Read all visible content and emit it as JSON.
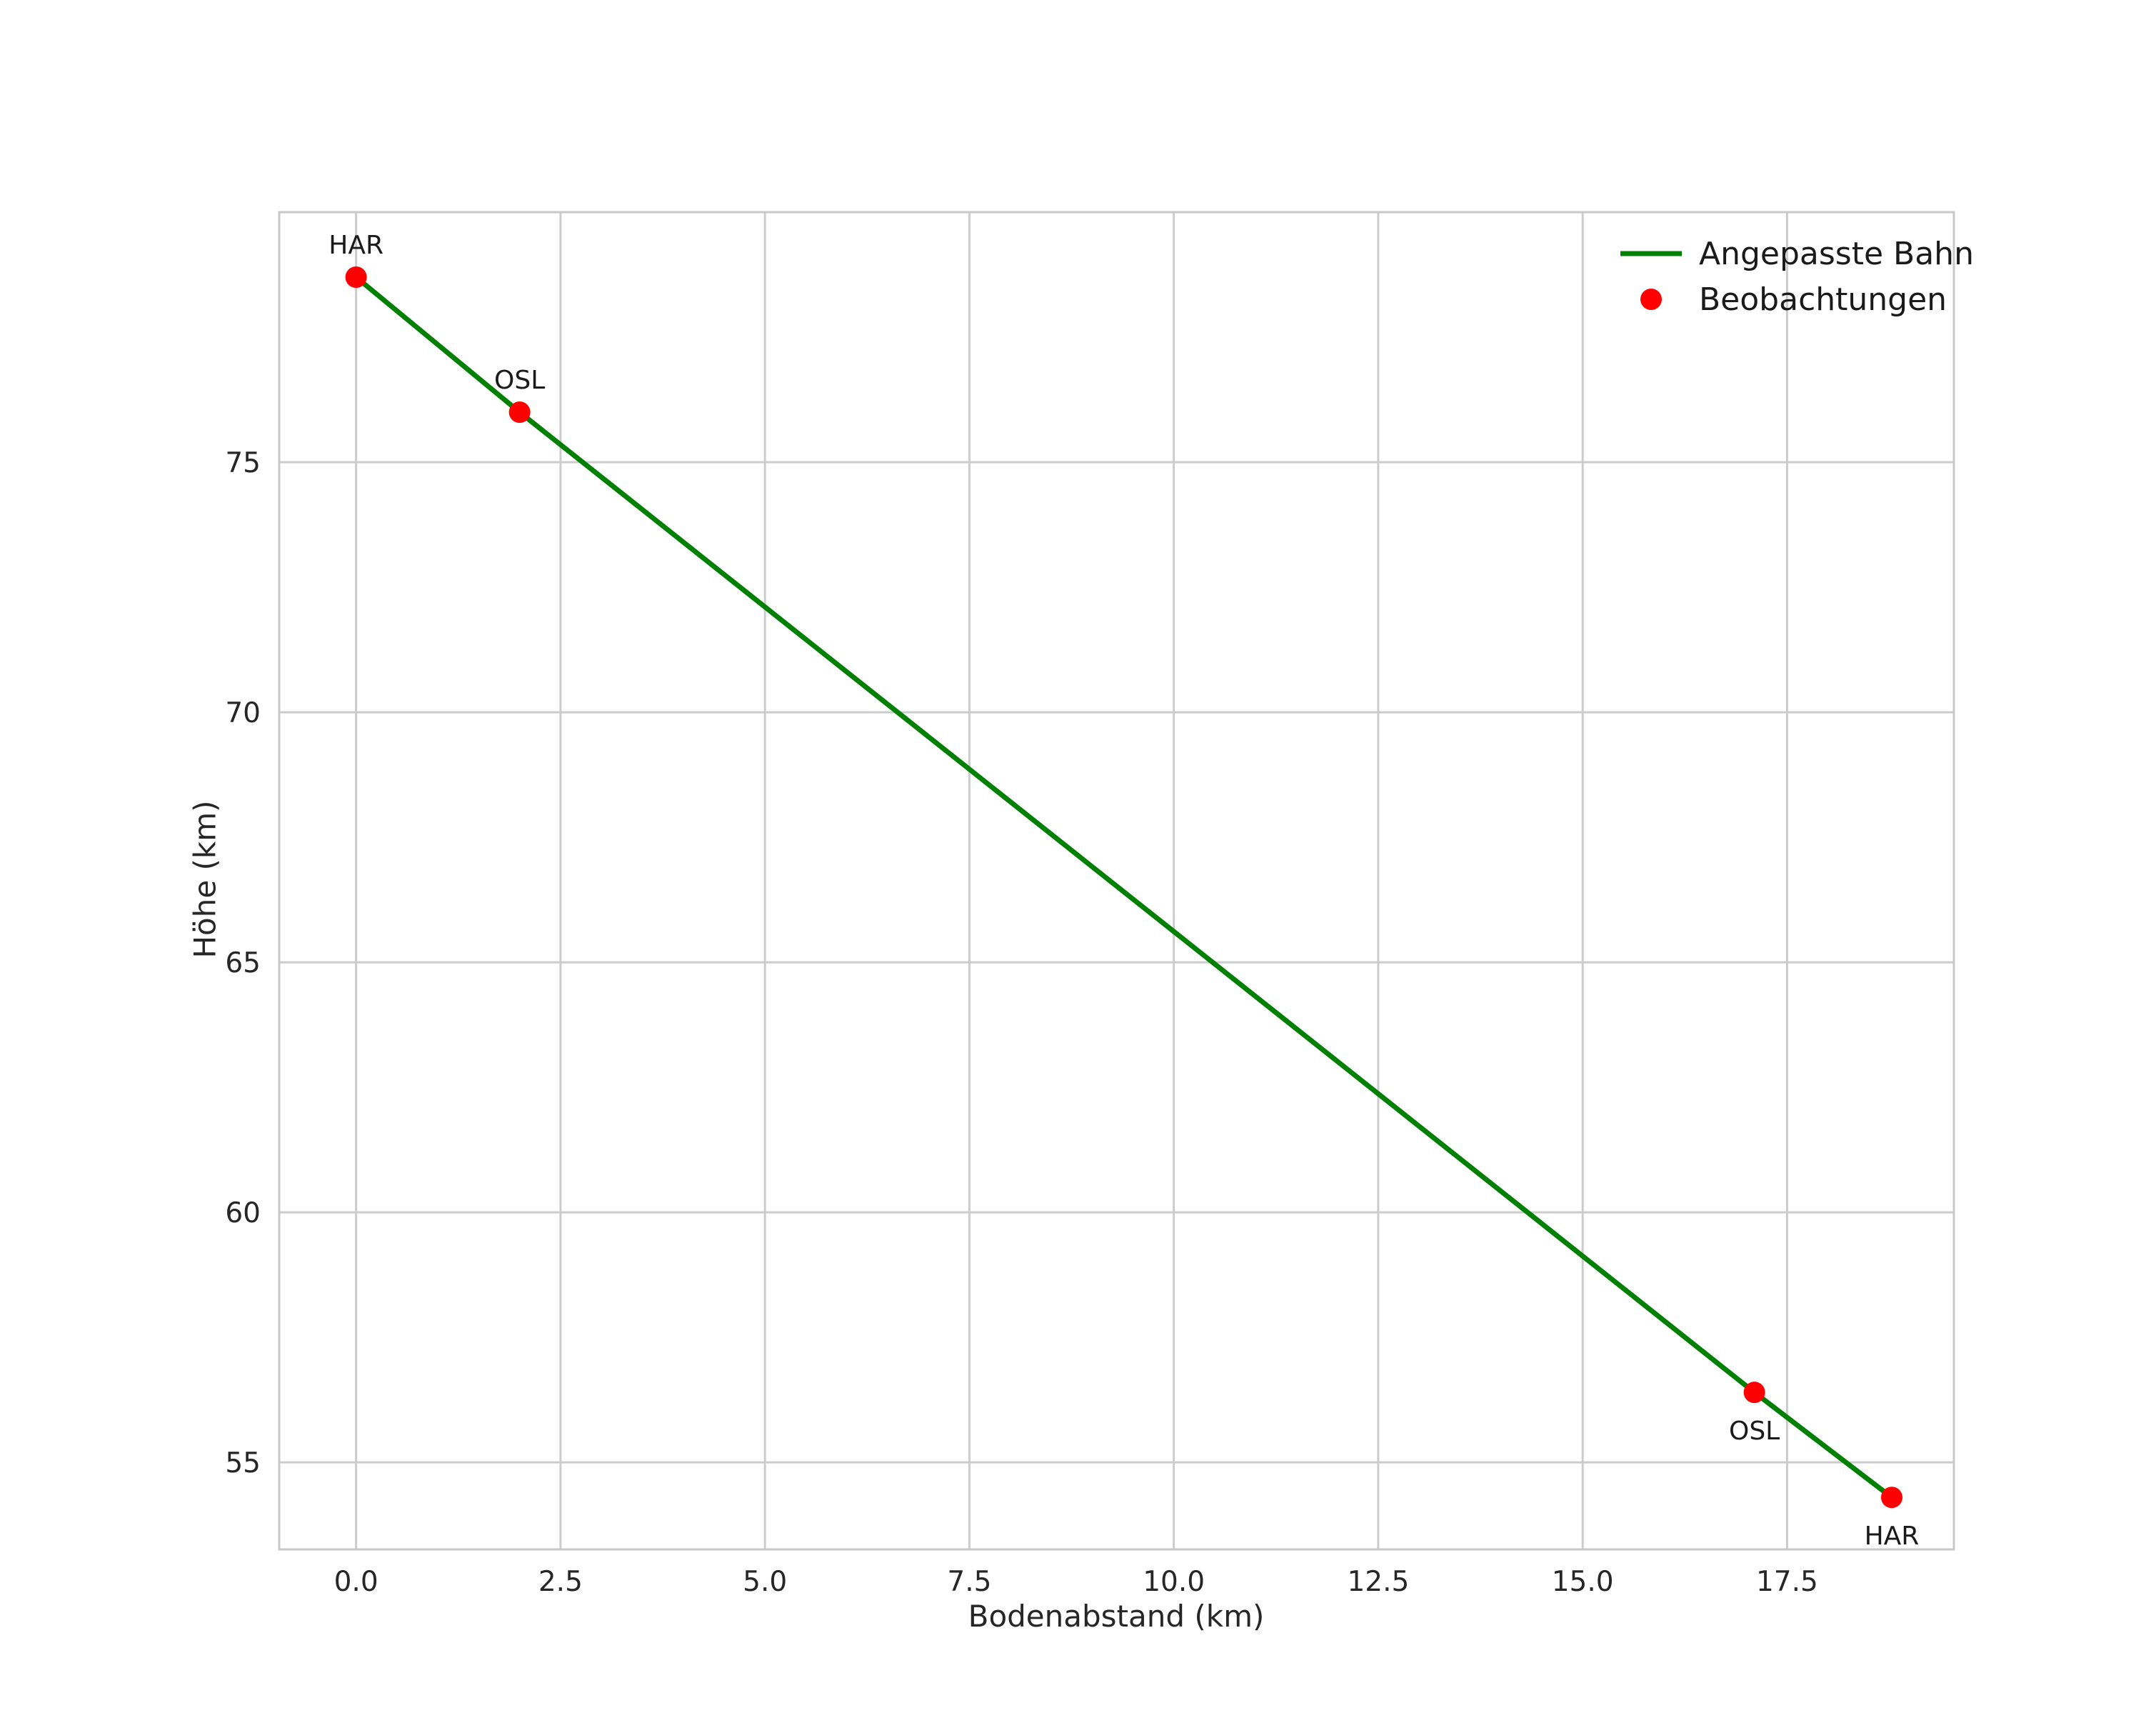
{
  "figure": {
    "background_color": "#ffffff",
    "grid_color": "#cccccc",
    "spine_color": "#c8c8c8",
    "text_color": "#262626"
  },
  "chart_data": {
    "type": "line+scatter",
    "title": "",
    "xlabel": "Bodenabstand (km)",
    "ylabel": "Höhe (km)",
    "grid": true,
    "legend_position": "upper-right",
    "xlim": [
      -0.94,
      19.54
    ],
    "ylim": [
      53.26,
      80.0
    ],
    "x_ticks": {
      "values": [
        0.0,
        2.5,
        5.0,
        7.5,
        10.0,
        12.5,
        15.0,
        17.5
      ],
      "labels": [
        "0.0",
        "2.5",
        "5.0",
        "7.5",
        "10.0",
        "12.5",
        "15.0",
        "17.5"
      ]
    },
    "y_ticks": {
      "values": [
        55,
        60,
        65,
        70,
        75
      ],
      "labels": [
        "55",
        "60",
        "65",
        "70",
        "75"
      ]
    },
    "series": [
      {
        "name": "Angepasste Bahn",
        "type": "line",
        "color": "#008000",
        "x": [
          0.0,
          2.0,
          17.1,
          18.78
        ],
        "y": [
          78.7,
          76.0,
          56.4,
          54.3
        ]
      },
      {
        "name": "Beobachtungen",
        "type": "scatter",
        "color": "#ff0000",
        "points": [
          {
            "x": 0.0,
            "y": 78.7,
            "label": "HAR",
            "label_pos": "above"
          },
          {
            "x": 2.0,
            "y": 76.0,
            "label": "OSL",
            "label_pos": "above"
          },
          {
            "x": 17.1,
            "y": 56.4,
            "label": "OSL",
            "label_pos": "below"
          },
          {
            "x": 18.78,
            "y": 54.3,
            "label": "HAR",
            "label_pos": "below"
          }
        ]
      }
    ]
  }
}
